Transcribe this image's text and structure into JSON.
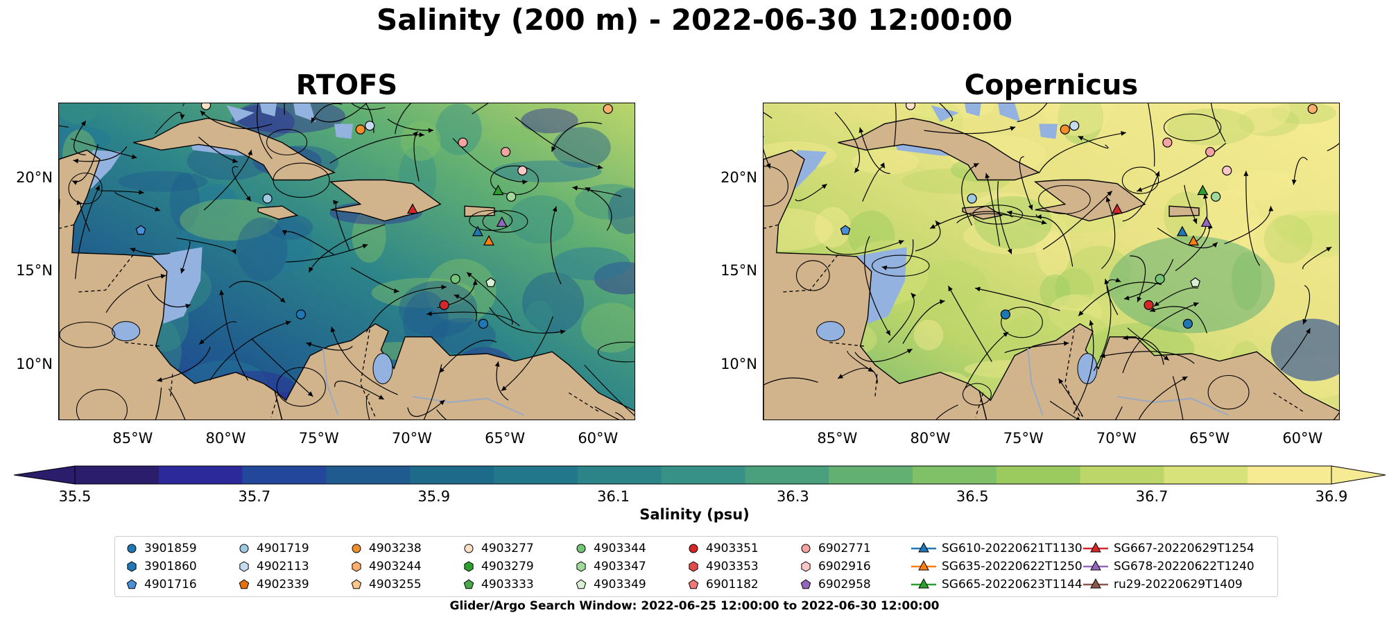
{
  "figure": {
    "title": "Salinity (200 m) - 2022-06-30 12:00:00",
    "search_window": "Glider/Argo Search Window: 2022-06-25 12:00:00 to 2022-06-30 12:00:00"
  },
  "chart_data": [
    {
      "type": "heatmap",
      "title": "RTOFS",
      "variable": "Salinity at 200 m",
      "x_ticks": [
        "85°W",
        "80°W",
        "75°W",
        "70°W",
        "65°W",
        "60°W"
      ],
      "y_ticks": [
        "20°N",
        "15°N",
        "10°N"
      ],
      "xlim": [
        -89,
        -58
      ],
      "ylim": [
        7,
        24
      ],
      "dominant_range": [
        35.6,
        36.6
      ],
      "overlay": "current streamlines, coastlines, borders, bathymetry contour"
    },
    {
      "type": "heatmap",
      "title": "Copernicus",
      "variable": "Salinity at 200 m",
      "x_ticks": [
        "85°W",
        "80°W",
        "75°W",
        "70°W",
        "65°W",
        "60°W"
      ],
      "y_ticks": [
        "20°N",
        "15°N",
        "10°N"
      ],
      "xlim": [
        -89,
        -58
      ],
      "ylim": [
        7,
        24
      ],
      "dominant_range": [
        36.4,
        36.9
      ],
      "overlay": "current streamlines, coastlines, borders, bathymetry contour"
    }
  ],
  "colorbar": {
    "label": "Salinity (psu)",
    "min": 35.5,
    "max": 36.9,
    "tick_labels": [
      "35.5",
      "35.7",
      "35.9",
      "36.1",
      "36.3",
      "36.5",
      "36.7",
      "36.9"
    ],
    "colors": [
      "#2b1c6c",
      "#2c2a9a",
      "#23479a",
      "#1f5b8e",
      "#1e6a8b",
      "#23778a",
      "#2c8489",
      "#379186",
      "#4aa07d",
      "#62b072",
      "#80c066",
      "#9bcb5f",
      "#bcd66a",
      "#d7e27a",
      "#f6eb92"
    ]
  },
  "legend": {
    "items": [
      {
        "label": "3901859",
        "marker": "circle",
        "color": "#1f77b4"
      },
      {
        "label": "3901860",
        "marker": "hexagon",
        "color": "#1f77b4"
      },
      {
        "label": "4901716",
        "marker": "pentagon",
        "color": "#4a90d9"
      },
      {
        "label": "4901719",
        "marker": "circle",
        "color": "#9ecae1"
      },
      {
        "label": "4902113",
        "marker": "hexagon",
        "color": "#c6dbef"
      },
      {
        "label": "4902339",
        "marker": "pentagon",
        "color": "#e6700d"
      },
      {
        "label": "4903238",
        "marker": "circle",
        "color": "#f28e2b"
      },
      {
        "label": "4903244",
        "marker": "hexagon",
        "color": "#fdae6b"
      },
      {
        "label": "4903255",
        "marker": "pentagon",
        "color": "#fdc78a"
      },
      {
        "label": "4903277",
        "marker": "circle",
        "color": "#fde0c5"
      },
      {
        "label": "4903279",
        "marker": "hexagon",
        "color": "#2ca02c"
      },
      {
        "label": "4903333",
        "marker": "pentagon",
        "color": "#4aa84a"
      },
      {
        "label": "4903344",
        "marker": "circle",
        "color": "#74c476"
      },
      {
        "label": "4903347",
        "marker": "hexagon",
        "color": "#a1d99b"
      },
      {
        "label": "4903349",
        "marker": "pentagon",
        "color": "#d9f0d3"
      },
      {
        "label": "4903351",
        "marker": "circle",
        "color": "#d62728"
      },
      {
        "label": "4903353",
        "marker": "hexagon",
        "color": "#e34a4a"
      },
      {
        "label": "6901182",
        "marker": "pentagon",
        "color": "#f07878"
      },
      {
        "label": "6902771",
        "marker": "circle",
        "color": "#f4a3a3"
      },
      {
        "label": "6902916",
        "marker": "hexagon",
        "color": "#fbc8c8"
      },
      {
        "label": "6902958",
        "marker": "pentagon",
        "color": "#9467bd"
      },
      {
        "label": "SG610-20220621T1130",
        "marker": "triangle-line",
        "color": "#1f77b4"
      },
      {
        "label": "SG635-20220622T1250",
        "marker": "triangle-line",
        "color": "#ff7f0e"
      },
      {
        "label": "SG665-20220623T1144",
        "marker": "triangle-line",
        "color": "#2ca02c"
      },
      {
        "label": "SG667-20220629T1254",
        "marker": "triangle-line",
        "color": "#d62728"
      },
      {
        "label": "SG678-20220622T1240",
        "marker": "triangle-line",
        "color": "#9467bd"
      },
      {
        "label": "ru29-20220629T1409",
        "marker": "triangle-line",
        "color": "#8c564b"
      }
    ]
  },
  "colors": {
    "land": "#d2b48c",
    "shallow_water": "#94b2e0",
    "deep_pacific": "#2b1c6c"
  }
}
